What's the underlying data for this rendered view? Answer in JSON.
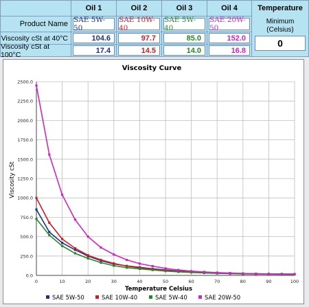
{
  "table": {
    "oil_headers": [
      "Oil 1",
      "Oil 2",
      "Oil 3",
      "Oil 4"
    ],
    "product_label": "Product Name",
    "visc40_label": "Viscosity cSt at 40°C",
    "visc100_label": "Viscosity cSt at 100°C",
    "products": [
      {
        "name": "SAE 5W-50",
        "v40": "104.6",
        "v100": "17.4",
        "color": "#1c2f8c"
      },
      {
        "name": "SAE 10W-40",
        "v40": "97.7",
        "v100": "14.5",
        "color": "#d21c24"
      },
      {
        "name": "SAE 5W-40",
        "v40": "85.0",
        "v100": "14.0",
        "color": "#238a23"
      },
      {
        "name": "SAE 20W-50",
        "v40": "152.0",
        "v100": "16.8",
        "color": "#d024c8"
      }
    ],
    "temperature": {
      "title": "Temperature",
      "sub_line1": "Minimum",
      "sub_line2": "(Celsius)",
      "value": "0"
    }
  },
  "chart_data": {
    "type": "line",
    "title": "Viscosity Curve",
    "xlabel": "Temperature Celsius",
    "ylabel": "Viscosity cSt",
    "xlim": [
      0,
      100
    ],
    "ylim": [
      0,
      2500
    ],
    "x_ticks": [
      "0",
      "10",
      "20",
      "30",
      "40",
      "50",
      "60",
      "70",
      "80",
      "90",
      "100"
    ],
    "y_ticks": [
      "0.0",
      "250.0",
      "500.0",
      "750.0",
      "1000.0",
      "1250.0",
      "1500.0",
      "1750.0",
      "2000.0",
      "2250.0",
      "2500.0"
    ],
    "legend_position": "bottom",
    "x": [
      0,
      5,
      10,
      15,
      20,
      25,
      30,
      35,
      40,
      45,
      50,
      55,
      60,
      65,
      70,
      75,
      80,
      85,
      90,
      95,
      100
    ],
    "series": [
      {
        "name": "SAE 5W-50",
        "color": "#1c2f8c",
        "values": [
          850,
          560,
          420,
          330,
          250,
          190,
          148,
          122,
          104.6,
          85,
          70,
          56,
          47,
          39,
          33,
          28,
          24,
          21,
          19.5,
          18.3,
          17.4
        ]
      },
      {
        "name": "SAE 10W-40",
        "color": "#d21c24",
        "values": [
          1000,
          680,
          470,
          350,
          260,
          200,
          155,
          120,
          97.7,
          80,
          64,
          52,
          44,
          36,
          30,
          25,
          21,
          18.5,
          16.5,
          15.4,
          14.5
        ]
      },
      {
        "name": "SAE 5W-40",
        "color": "#238a23",
        "values": [
          730,
          520,
          380,
          285,
          220,
          165,
          125,
          100,
          85,
          70,
          56,
          46,
          38,
          31,
          26,
          22,
          19,
          17,
          15.5,
          14.5,
          14.0
        ]
      },
      {
        "name": "SAE 20W-50",
        "color": "#d024c8",
        "values": [
          2450,
          1560,
          1040,
          720,
          500,
          360,
          270,
          200,
          152,
          120,
          90,
          70,
          55,
          45,
          36,
          30,
          25,
          21.5,
          19,
          17.5,
          16.8
        ]
      }
    ]
  }
}
